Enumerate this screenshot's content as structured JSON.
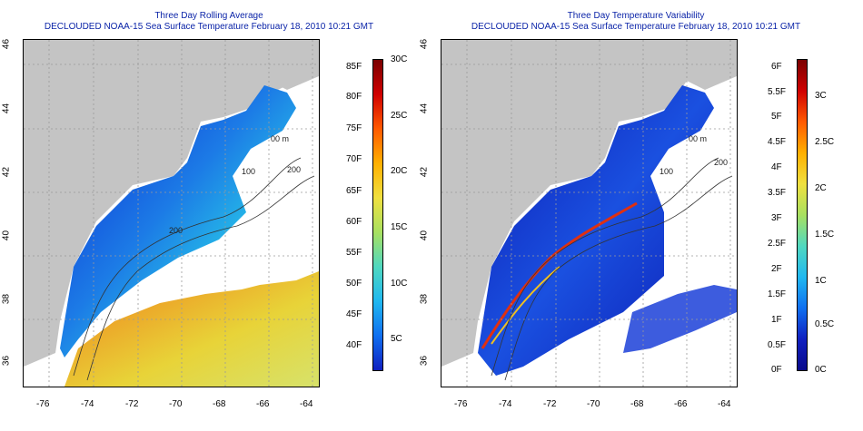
{
  "left_panel": {
    "title_line1": "Three Day Rolling Average",
    "title_line2": "DECLOUDED NOAA-15 Sea Surface Temperature February 18, 2010 10:21 GMT",
    "lat_ticks": [
      "46",
      "44",
      "42",
      "40",
      "38",
      "36"
    ],
    "lon_ticks": [
      "-76",
      "-74",
      "-72",
      "-70",
      "-68",
      "-66",
      "-64"
    ],
    "colorbar_f": [
      "85F",
      "80F",
      "75F",
      "70F",
      "65F",
      "60F",
      "55F",
      "50F",
      "45F",
      "40F"
    ],
    "colorbar_c": [
      "30C",
      "25C",
      "20C",
      "15C",
      "10C",
      "5C"
    ],
    "contour_labels": [
      "00 m",
      "100",
      "200",
      "200"
    ]
  },
  "right_panel": {
    "title_line1": "Three Day Temperature Variability",
    "title_line2": "DECLOUDED NOAA-15 Sea Surface Temperature February 18, 2010 10:21 GMT",
    "lat_ticks": [
      "46",
      "44",
      "42",
      "40",
      "38",
      "36"
    ],
    "lon_ticks": [
      "-76",
      "-74",
      "-72",
      "-70",
      "-68",
      "-66",
      "-64"
    ],
    "colorbar_f": [
      "6F",
      "5.5F",
      "5F",
      "4.5F",
      "4F",
      "3.5F",
      "3F",
      "2.5F",
      "2F",
      "1.5F",
      "1F",
      "0.5F",
      "0F"
    ],
    "colorbar_c": [
      "3C",
      "2.5C",
      "2C",
      "1.5C",
      "1C",
      "0.5C",
      "0C"
    ],
    "contour_labels": [
      "00 m",
      "100",
      "200"
    ]
  },
  "colors": {
    "land": "#c4c4c4",
    "title": "#0b24a8",
    "grid": "#9a9a9a"
  }
}
